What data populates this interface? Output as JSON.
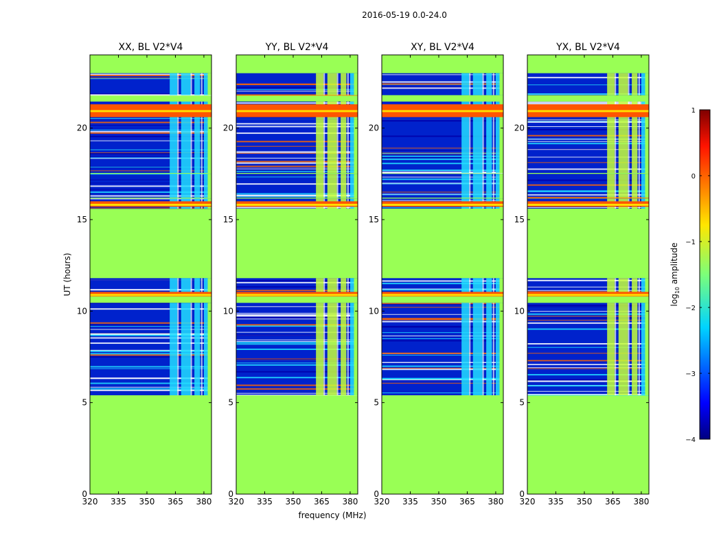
{
  "chart_data": {
    "type": "heatmap",
    "title": "2016-05-19 0.0-24.0",
    "xlabel": "frequency (MHz)",
    "ylabel": "UT (hours)",
    "xlim": [
      320,
      384
    ],
    "ylim": [
      0,
      24
    ],
    "xticks": [
      320,
      335,
      350,
      365,
      380
    ],
    "yticks": [
      0,
      5,
      10,
      15,
      20
    ],
    "panels": [
      {
        "title": "XX, BL V2*V4"
      },
      {
        "title": "YY, BL V2*V4"
      },
      {
        "title": "XY, BL V2*V4"
      },
      {
        "title": "YX, BL V2*V4"
      }
    ],
    "colorbar": {
      "label": "log10 amplitude",
      "label_base": "log",
      "label_sub": "10",
      "label_rest": " amplitude",
      "range": [
        -4,
        1
      ],
      "ticks": [
        "1",
        "0",
        "−1",
        "−2",
        "−3",
        "−4"
      ],
      "tick_values": [
        1,
        0,
        -1,
        -2,
        -3,
        -4
      ]
    },
    "data_gap_level": -1.25,
    "observing_blocks_hours": [
      [
        5.4,
        10.45
      ],
      [
        10.8,
        11.8
      ],
      [
        15.6,
        16.15
      ],
      [
        16.2,
        17.5
      ],
      [
        17.55,
        20.5
      ],
      [
        20.5,
        21.45
      ],
      [
        21.8,
        23.0
      ]
    ],
    "saturated_rfi_bands_hours": [
      [
        10.8,
        11.05
      ],
      [
        15.7,
        16.0
      ],
      [
        20.6,
        21.3
      ]
    ],
    "bright_frequency_channels_mhz": [
      [
        362,
        366
      ],
      [
        368,
        373
      ],
      [
        375,
        378
      ],
      [
        380,
        382
      ]
    ],
    "colors": {
      "gap": "#99ff55",
      "low": "#0022cc",
      "mid": "#22ddff",
      "high": "#ff5500"
    }
  }
}
